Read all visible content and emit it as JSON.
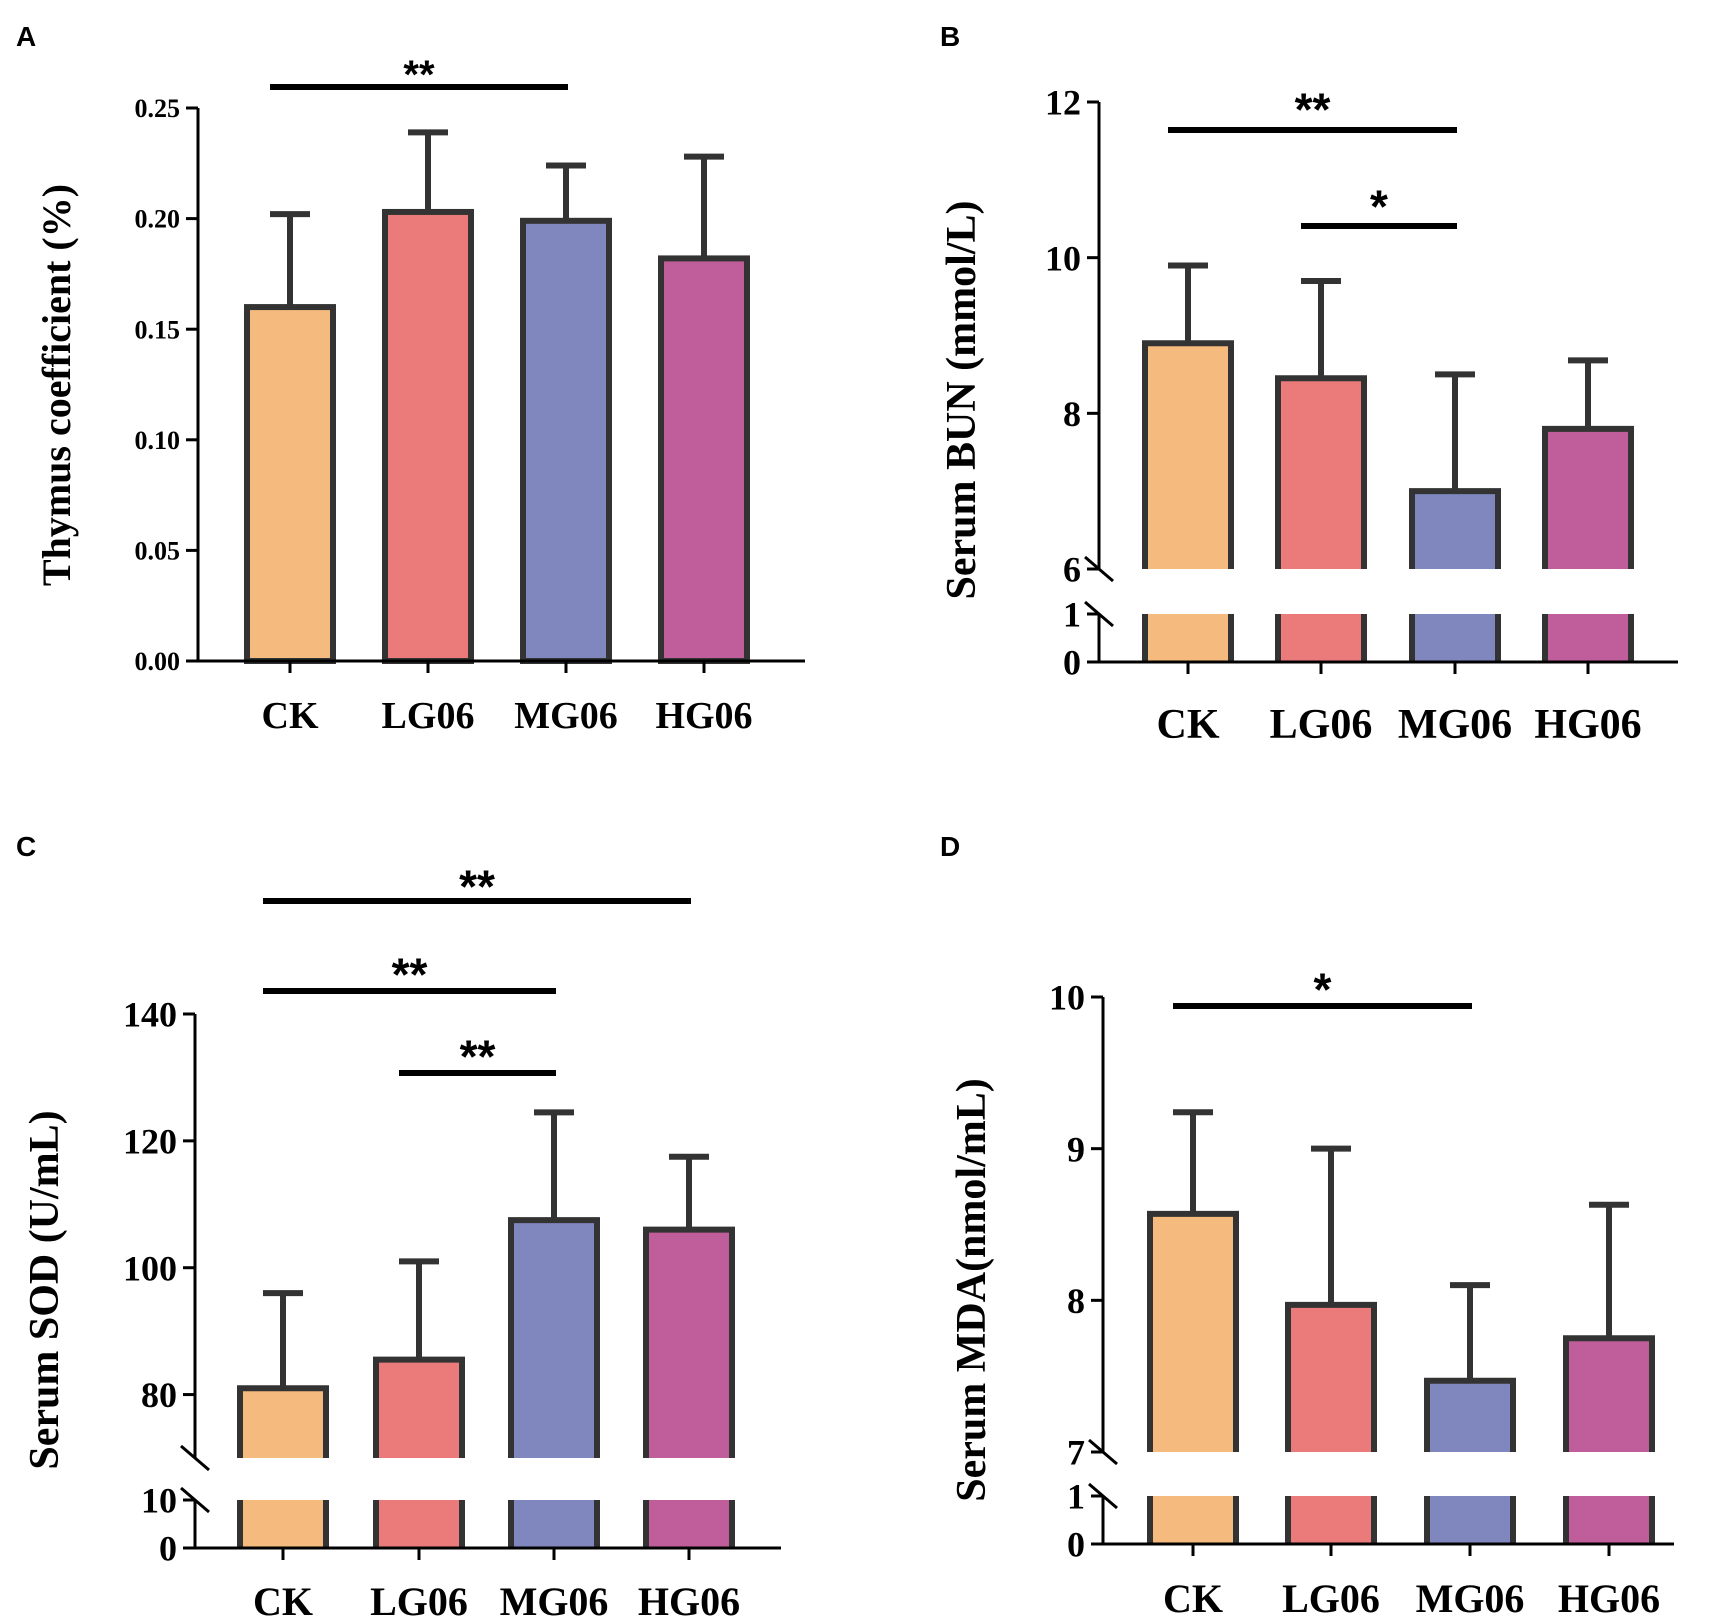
{
  "colors": {
    "CK": "#F5BA7E",
    "LG06": "#EB7A7A",
    "MG06": "#7F87BE",
    "HG06": "#C05E9C",
    "outline": "#333333",
    "axis": "#000000"
  },
  "chart_data": [
    {
      "panel": "A",
      "type": "bar",
      "title": "",
      "categories": [
        "CK",
        "LG06",
        "MG06",
        "HG06"
      ],
      "values": [
        0.16,
        0.203,
        0.199,
        0.182
      ],
      "errors": [
        0.042,
        0.036,
        0.025,
        0.046
      ],
      "ylabel": "Thymus coefficient (%)",
      "xlabel": "",
      "ylim": [
        0,
        0.25
      ],
      "yticks": [
        0.0,
        0.05,
        0.1,
        0.15,
        0.2,
        0.25
      ],
      "ytick_labels": [
        "0.00",
        "0.05",
        "0.10",
        "0.15",
        "0.20",
        "0.25"
      ],
      "axis_break": null,
      "significance": [
        {
          "from": "CK",
          "to": "MG06",
          "label": "**"
        }
      ]
    },
    {
      "panel": "B",
      "type": "bar",
      "title": "",
      "categories": [
        "CK",
        "LG06",
        "MG06",
        "HG06"
      ],
      "values": [
        8.9,
        8.45,
        7.0,
        7.8
      ],
      "errors": [
        1.0,
        1.25,
        1.5,
        0.88
      ],
      "ylabel": "Serum BUN (mmol/L)",
      "xlabel": "",
      "ylim": [
        0,
        12
      ],
      "yticks": [
        0,
        1,
        6,
        8,
        10,
        12
      ],
      "ytick_labels": [
        "0",
        "1",
        "6",
        "8",
        "10",
        "12"
      ],
      "axis_break": {
        "lower_max": 1,
        "upper_min": 6
      },
      "significance": [
        {
          "from": "CK",
          "to": "MG06",
          "label": "**"
        },
        {
          "from": "LG06",
          "to": "MG06",
          "label": "*"
        }
      ]
    },
    {
      "panel": "C",
      "type": "bar",
      "title": "",
      "categories": [
        "CK",
        "LG06",
        "MG06",
        "HG06"
      ],
      "values": [
        81,
        85.5,
        107.5,
        106
      ],
      "errors": [
        15,
        15.5,
        17,
        11.5
      ],
      "ylabel": "Serum SOD (U/mL)",
      "xlabel": "",
      "ylim": [
        0,
        140
      ],
      "yticks": [
        0,
        10,
        80,
        100,
        120,
        140
      ],
      "ytick_labels": [
        "0",
        "10",
        "80",
        "100",
        "120",
        "140"
      ],
      "axis_break": {
        "lower_max": 10,
        "upper_min": 70
      },
      "significance": [
        {
          "from": "CK",
          "to": "HG06",
          "label": "**"
        },
        {
          "from": "CK",
          "to": "MG06",
          "label": "**"
        },
        {
          "from": "LG06",
          "to": "MG06",
          "label": "**"
        }
      ]
    },
    {
      "panel": "D",
      "type": "bar",
      "title": "",
      "categories": [
        "CK",
        "LG06",
        "MG06",
        "HG06"
      ],
      "values": [
        8.57,
        7.97,
        7.47,
        7.75
      ],
      "errors": [
        0.67,
        1.03,
        0.63,
        0.88
      ],
      "ylabel": "Serum MDA(nmol/mL)",
      "xlabel": "",
      "ylim": [
        0,
        10
      ],
      "yticks": [
        0,
        1,
        7,
        8,
        9,
        10
      ],
      "ytick_labels": [
        "0",
        "1",
        "7",
        "8",
        "9",
        "10"
      ],
      "axis_break": {
        "lower_max": 1,
        "upper_min": 7
      },
      "significance": [
        {
          "from": "CK",
          "to": "MG06",
          "label": "*"
        }
      ]
    }
  ]
}
